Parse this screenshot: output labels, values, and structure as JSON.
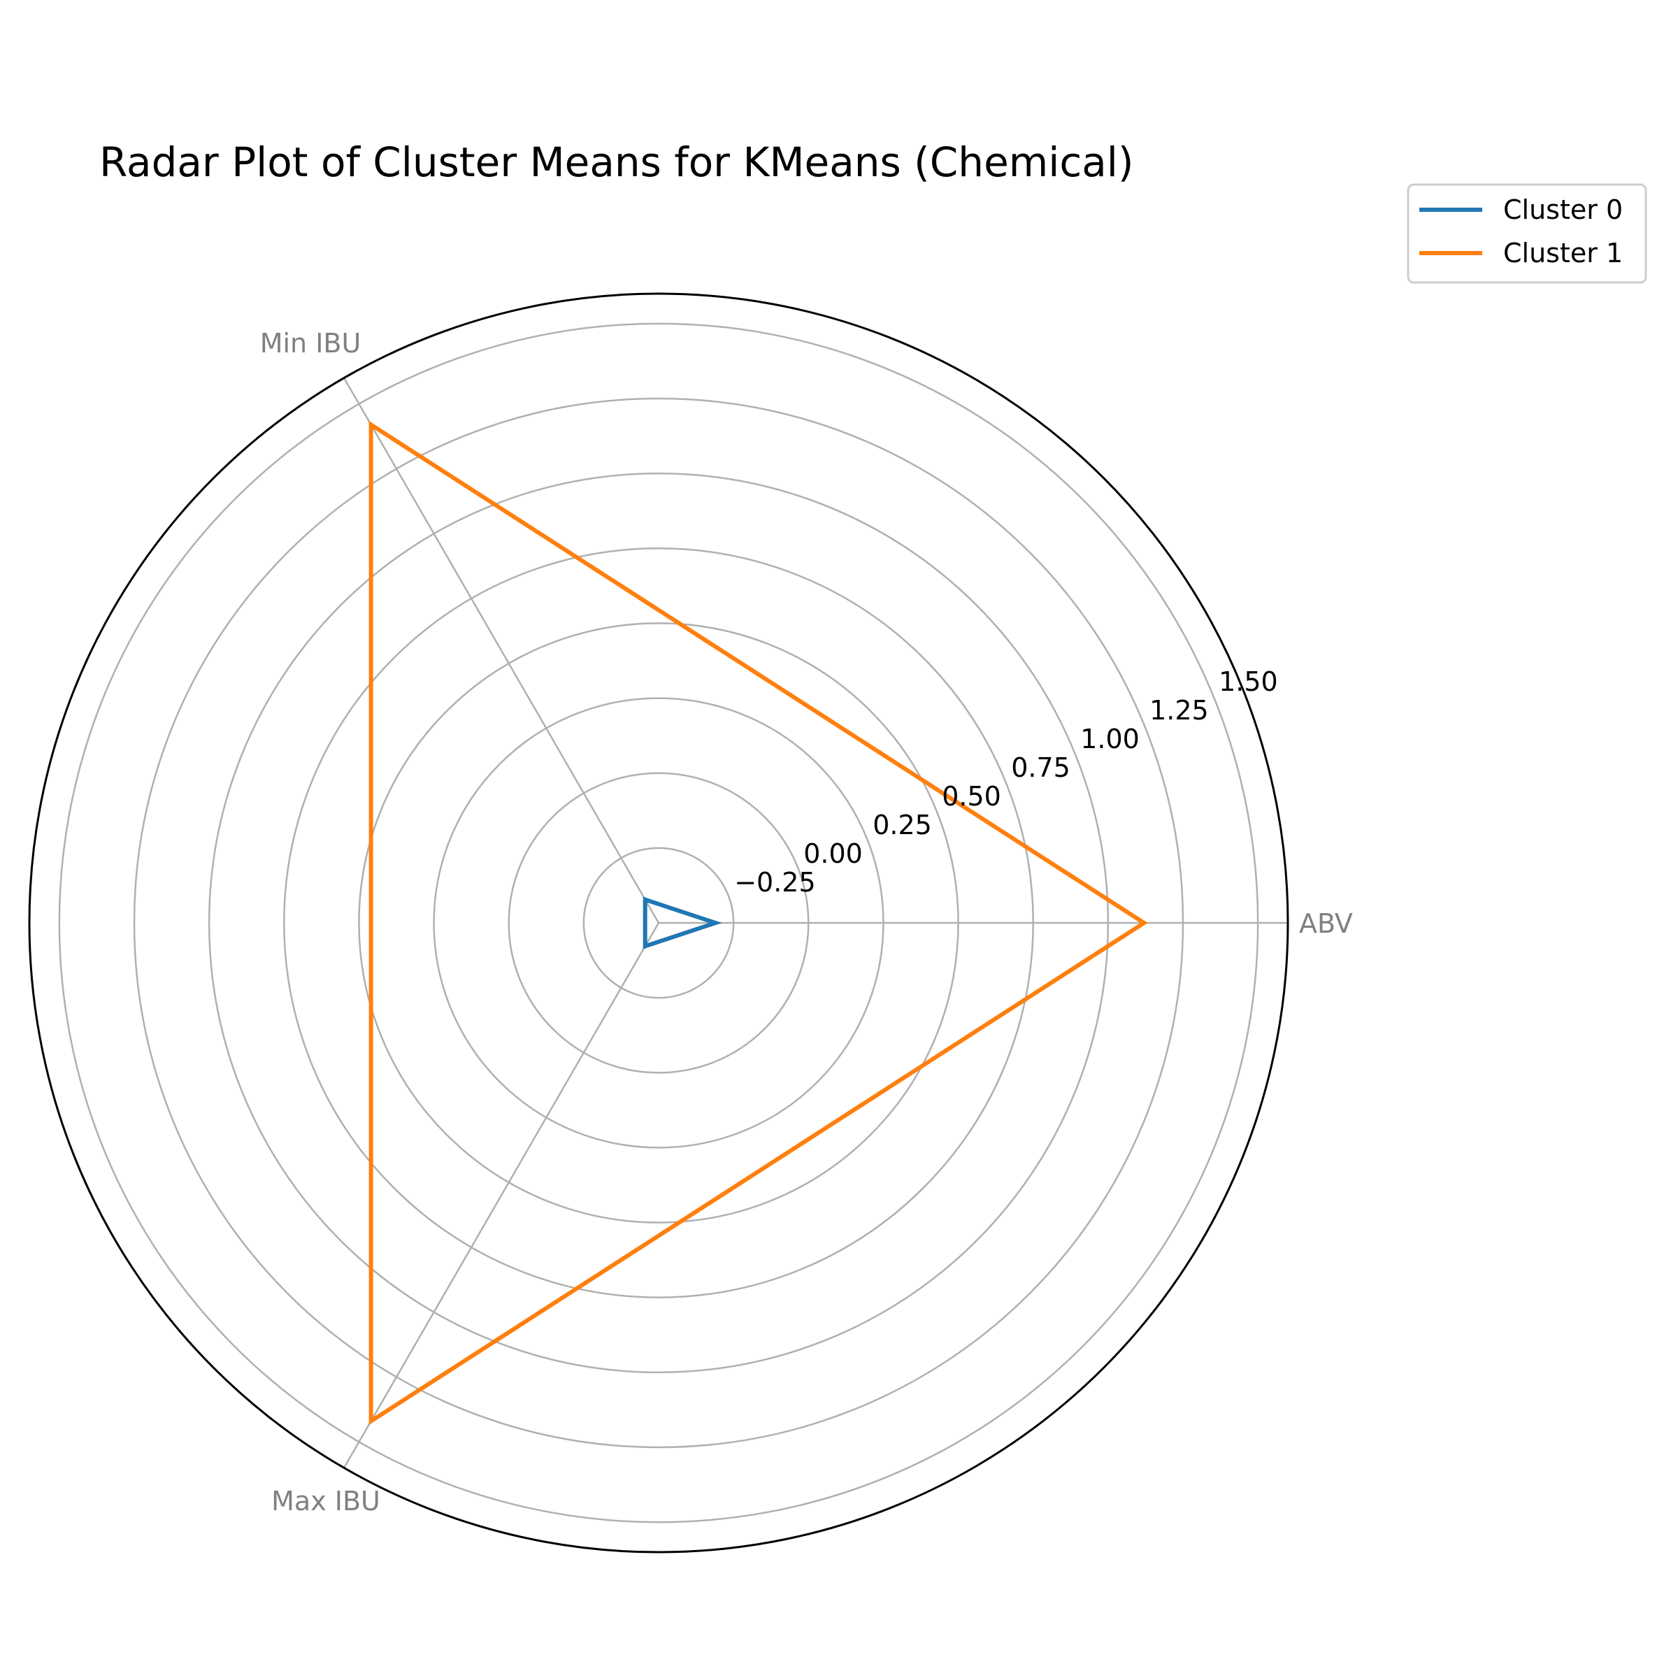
{
  "chart_data": {
    "type": "radar",
    "title": "Radar Plot of Cluster Means for KMeans (Chemical)",
    "categories": [
      "ABV",
      "Min IBU",
      "Max IBU"
    ],
    "rlim": [
      -0.5,
      1.6
    ],
    "rticks": [
      -0.25,
      0.0,
      0.25,
      0.5,
      0.75,
      1.0,
      1.25,
      1.5
    ],
    "rtick_labels": [
      "−0.25",
      "0.00",
      "0.25",
      "0.50",
      "0.75",
      "1.00",
      "1.25",
      "1.50"
    ],
    "grid": true,
    "legend_position": "top-right",
    "series": [
      {
        "name": "Cluster 0",
        "color": "#1f77b4",
        "values": [
          -0.31,
          -0.41,
          -0.41
        ]
      },
      {
        "name": "Cluster 1",
        "color": "#ff7f0e",
        "values": [
          1.12,
          1.42,
          1.42
        ]
      }
    ]
  }
}
